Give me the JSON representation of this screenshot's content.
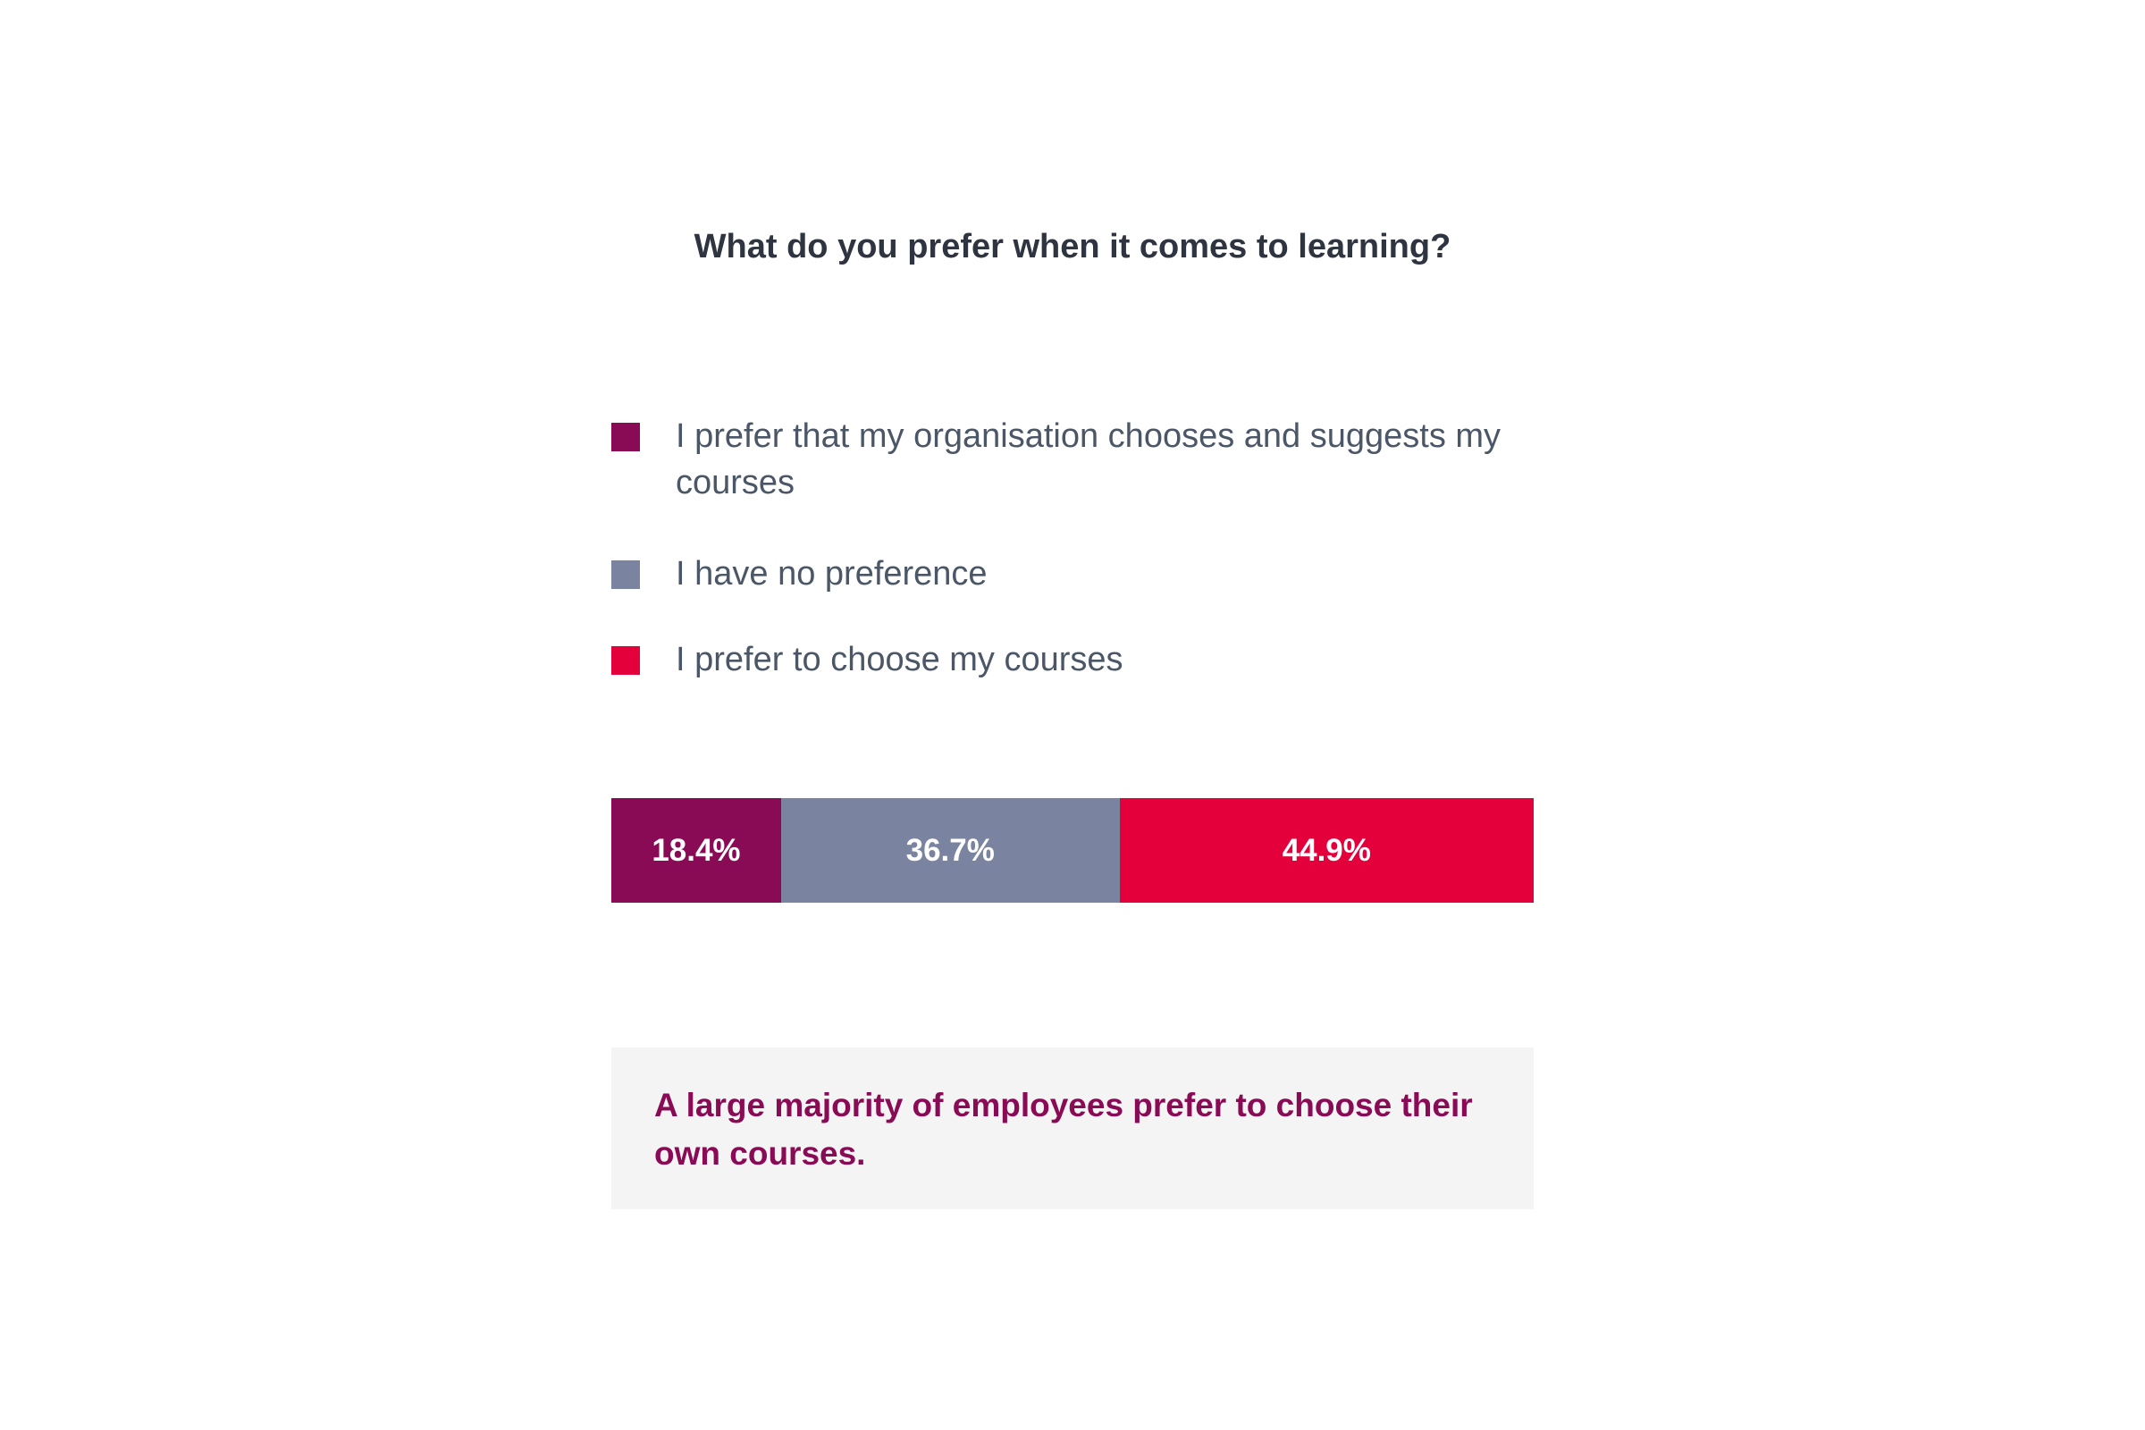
{
  "chart_data": {
    "type": "bar",
    "orientation": "horizontal-stacked-100",
    "title": "What do you prefer when it comes to learning?",
    "series": [
      {
        "name": "I prefer that my organisation chooses and suggests my courses",
        "value": 18.4,
        "label": "18.4%",
        "color": "#8a0b55"
      },
      {
        "name": "I have no preference",
        "value": 36.7,
        "label": "36.7%",
        "color": "#7a84a0"
      },
      {
        "name": "I prefer to choose my courses",
        "value": 44.9,
        "label": "44.9%",
        "color": "#e4003a"
      }
    ],
    "legend_placement": "top",
    "grid": false
  },
  "callout": {
    "text": "A large majority of employees prefer to choose their own courses."
  }
}
